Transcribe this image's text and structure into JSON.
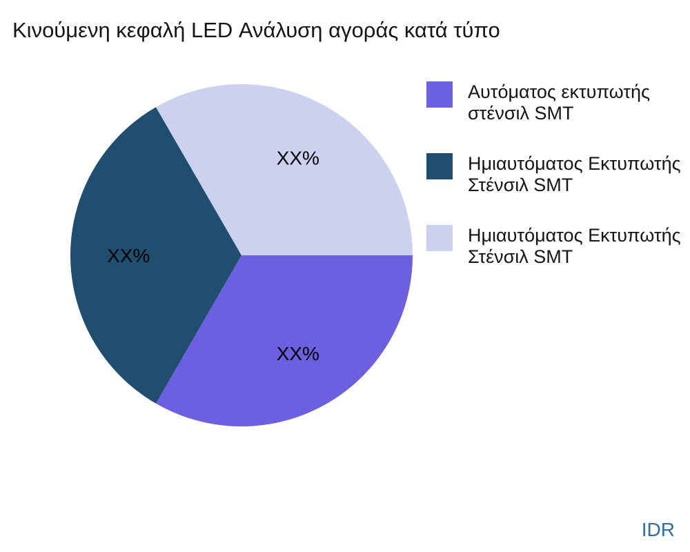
{
  "title": "Κινούμενη κεφαλή LED Ανάλυση αγοράς κατά τύπο",
  "watermark": "IDR",
  "chart_data": {
    "type": "pie",
    "title": "Κινούμενη κεφαλή LED Ανάλυση αγοράς κατά τύπο",
    "legend_position": "right",
    "start_angle_deg": 0,
    "direction": "clockwise",
    "slices": [
      {
        "label": "Αυτόματος εκτυπωτής στένσιλ SMT",
        "value": 33.33,
        "display_value": "XX%",
        "color": "#6c5fe0"
      },
      {
        "label": "Ημιαυτόματος Εκτυπωτής Στένσιλ SMT",
        "value": 33.33,
        "display_value": "XX%",
        "color": "#1f4e6e"
      },
      {
        "label": "Ημιαυτόματος Εκτυπωτής Στένσιλ SMT",
        "value": 33.33,
        "display_value": "XX%",
        "color": "#cdd1f0"
      }
    ]
  },
  "legend": {
    "items": [
      {
        "line1": "Αυτόματος εκτυπωτής",
        "line2": "στένσιλ SMT"
      },
      {
        "line1": "Ημιαυτόματος Εκτυπωτής",
        "line2": "Στένσιλ SMT"
      },
      {
        "line1": "Ημιαυτόματος Εκτυπωτής",
        "line2": "Στένσιλ SMT"
      }
    ]
  }
}
